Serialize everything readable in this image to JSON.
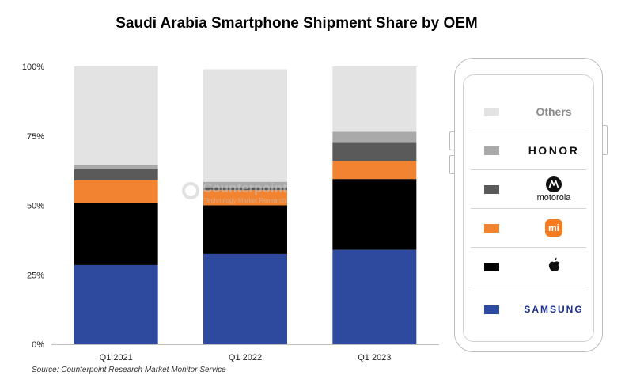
{
  "title": "Saudi Arabia Smartphone Shipment Share by OEM",
  "source": "Source: Counterpoint Research Market Monitor Service",
  "watermark": {
    "name": "Counterpoint",
    "sub": "Technology Market Research"
  },
  "colors": {
    "SAMSUNG": "#2e4a9e",
    "Apple": "#000000",
    "Xiaomi": "#f28431",
    "motorola": "#5a5a5a",
    "HONOR": "#a9a9a9",
    "Others": "#e3e3e3"
  },
  "legend": [
    {
      "key": "Others",
      "label": "Others",
      "icon": "others"
    },
    {
      "key": "HONOR",
      "label": "HONOR",
      "icon": "honor-wordmark"
    },
    {
      "key": "motorola",
      "label": "motorola",
      "icon": "motorola-logo"
    },
    {
      "key": "Xiaomi",
      "label": "mi",
      "icon": "xiaomi-logo"
    },
    {
      "key": "Apple",
      "label": "",
      "icon": "apple-logo"
    },
    {
      "key": "SAMSUNG",
      "label": "SAMSUNG",
      "icon": "samsung-wordmark"
    }
  ],
  "chart_data": {
    "type": "bar",
    "stacked": true,
    "title": "Saudi Arabia Smartphone Shipment Share by OEM",
    "categories": [
      "Q1 2021",
      "Q1 2022",
      "Q1 2023"
    ],
    "yticks": [
      "0%",
      "25%",
      "50%",
      "75%",
      "100%"
    ],
    "ylim": [
      0,
      100
    ],
    "legend_position": "right",
    "series": [
      {
        "name": "SAMSUNG",
        "values": [
          28.5,
          32.5,
          34
        ]
      },
      {
        "name": "Apple",
        "values": [
          22.5,
          17.5,
          25.5
        ]
      },
      {
        "name": "Xiaomi",
        "values": [
          8,
          5.5,
          6.5
        ]
      },
      {
        "name": "motorola",
        "values": [
          4,
          1,
          6.5
        ]
      },
      {
        "name": "HONOR",
        "values": [
          1.5,
          2,
          4
        ]
      },
      {
        "name": "Others",
        "values": [
          35.5,
          40.5,
          23.5
        ]
      }
    ]
  }
}
